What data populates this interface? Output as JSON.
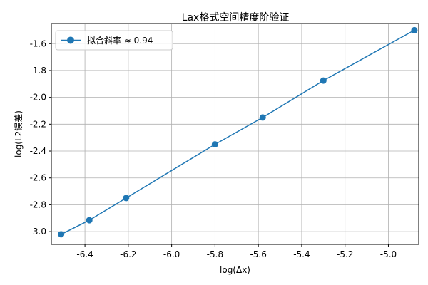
{
  "chart_data": {
    "type": "line",
    "title": "Lax格式空间精度阶验证",
    "xlabel": "log(Δx)",
    "ylabel": "log(L2误差)",
    "xlim": [
      -6.555,
      -4.86
    ],
    "ylim": [
      -3.095,
      -1.45
    ],
    "xticks": [
      -6.4,
      -6.2,
      -6.0,
      -5.8,
      -5.6,
      -5.4,
      -5.2,
      -5.0
    ],
    "xtick_labels": [
      "-6.4",
      "-6.2",
      "-6.0",
      "-5.8",
      "-5.6",
      "-5.4",
      "-5.2",
      "-5.0"
    ],
    "yticks": [
      -3.0,
      -2.8,
      -2.6,
      -2.4,
      -2.2,
      -2.0,
      -1.8,
      -1.6
    ],
    "ytick_labels": [
      "-3.0",
      "-2.8",
      "-2.6",
      "-2.4",
      "-2.2",
      "-2.0",
      "-1.8",
      "-1.6"
    ],
    "grid": true,
    "legend_position": "top-left",
    "series": [
      {
        "name": "拟合斜率 ≈ 0.94",
        "color": "#1f77b4",
        "marker": "circle",
        "x": [
          -6.51,
          -6.38,
          -6.21,
          -5.8,
          -5.58,
          -5.3,
          -4.88
        ],
        "y": [
          -3.02,
          -2.915,
          -2.75,
          -2.35,
          -2.15,
          -1.875,
          -1.5
        ]
      }
    ]
  }
}
